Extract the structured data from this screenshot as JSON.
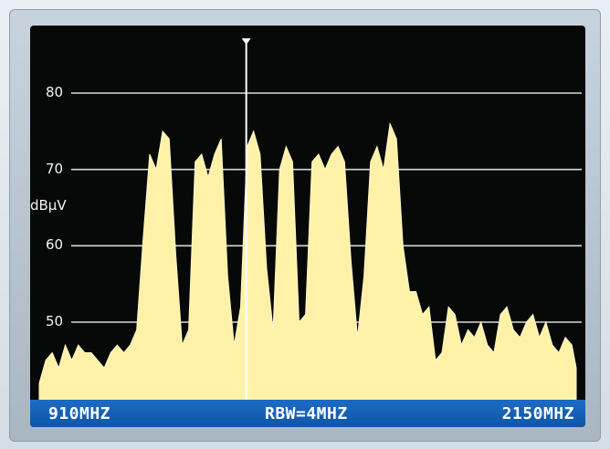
{
  "chart_data": {
    "type": "area",
    "ylabel": "dBμV",
    "y_ticks": [
      "80",
      "70",
      "60",
      "50"
    ],
    "ylim": [
      40,
      82
    ],
    "xlim_mhz": [
      910,
      2150
    ],
    "grid": true,
    "series_color": "#fff2a8",
    "marker_color": "#ffffff",
    "marker_freq_mhz": 1388,
    "x": [
      910,
      925,
      940,
      955,
      970,
      985,
      1000,
      1015,
      1030,
      1045,
      1060,
      1075,
      1090,
      1105,
      1120,
      1135,
      1150,
      1165,
      1180,
      1195,
      1210,
      1225,
      1240,
      1255,
      1270,
      1285,
      1300,
      1315,
      1330,
      1345,
      1360,
      1375,
      1390,
      1405,
      1420,
      1435,
      1450,
      1465,
      1480,
      1495,
      1510,
      1525,
      1540,
      1555,
      1570,
      1585,
      1600,
      1615,
      1630,
      1645,
      1660,
      1675,
      1690,
      1705,
      1720,
      1735,
      1750,
      1765,
      1780,
      1795,
      1810,
      1825,
      1840,
      1855,
      1870,
      1885,
      1900,
      1915,
      1930,
      1945,
      1960,
      1975,
      1990,
      2005,
      2020,
      2035,
      2050,
      2065,
      2080,
      2095,
      2110,
      2125,
      2140,
      2150
    ],
    "values": [
      42,
      45,
      46,
      44,
      47,
      45,
      47,
      46,
      46,
      45,
      44,
      46,
      47,
      46,
      47,
      49,
      61,
      72,
      70,
      75,
      74,
      59,
      47,
      49,
      71,
      72,
      69,
      72,
      74,
      56,
      47,
      52,
      73,
      75,
      72,
      57,
      49,
      70,
      73,
      71,
      50,
      51,
      71,
      72,
      70,
      72,
      73,
      71,
      58,
      48,
      56,
      71,
      73,
      70,
      76,
      74,
      60,
      54,
      54,
      51,
      52,
      45,
      46,
      52,
      51,
      47,
      49,
      48,
      50,
      47,
      46,
      51,
      52,
      49,
      48,
      50,
      51,
      48,
      50,
      47,
      46,
      48,
      47,
      44
    ]
  },
  "statusbar": {
    "left": "910MHZ",
    "center": "RBW=4MHZ",
    "right": "2150MHZ"
  }
}
